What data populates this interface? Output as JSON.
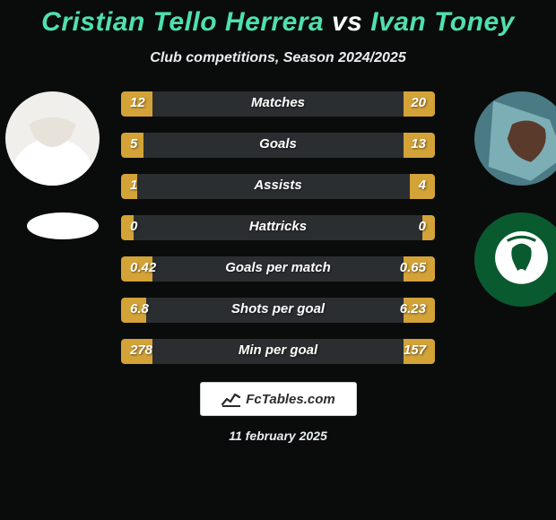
{
  "background_color": "#0a0c0c",
  "title": {
    "player1": "Cristian Tello Herrera",
    "vs": "vs",
    "player2": "Ivan Toney",
    "player1_color": "#4fe0af",
    "vs_color": "#ffffff",
    "player2_color": "#4fe0af",
    "fontsize": 30
  },
  "subtitle": {
    "text": "Club competitions, Season 2024/2025",
    "color": "#e9eef0",
    "fontsize": 16
  },
  "avatars": {
    "left_bg": "#f1efec",
    "right_bg": "#3a6a74"
  },
  "club_right": {
    "bg": "#0a5a2f",
    "emblem_bg": "#ffffff"
  },
  "colors": {
    "bar_bg": "#2b2e30",
    "bar_left": "#d3a338",
    "bar_right": "#d3a338",
    "bar_label": "#ffffff",
    "bar_value": "#ffffff"
  },
  "bar_style": {
    "height": 28,
    "radius": 4,
    "fontsize": 15
  },
  "stats": [
    {
      "label": "Matches",
      "left_val": "12",
      "right_val": "20",
      "left_w": 10,
      "right_w": 10
    },
    {
      "label": "Goals",
      "left_val": "5",
      "right_val": "13",
      "left_w": 7,
      "right_w": 10
    },
    {
      "label": "Assists",
      "left_val": "1",
      "right_val": "4",
      "left_w": 5,
      "right_w": 8
    },
    {
      "label": "Hattricks",
      "left_val": "0",
      "right_val": "0",
      "left_w": 4,
      "right_w": 4
    },
    {
      "label": "Goals per match",
      "left_val": "0.42",
      "right_val": "0.65",
      "left_w": 10,
      "right_w": 10
    },
    {
      "label": "Shots per goal",
      "left_val": "6.8",
      "right_val": "6.23",
      "left_w": 8,
      "right_w": 10
    },
    {
      "label": "Min per goal",
      "left_val": "278",
      "right_val": "157",
      "left_w": 10,
      "right_w": 10
    }
  ],
  "footer": {
    "brand": "FcTables.com",
    "date": "11 february 2025",
    "date_color": "#e9eef0"
  }
}
